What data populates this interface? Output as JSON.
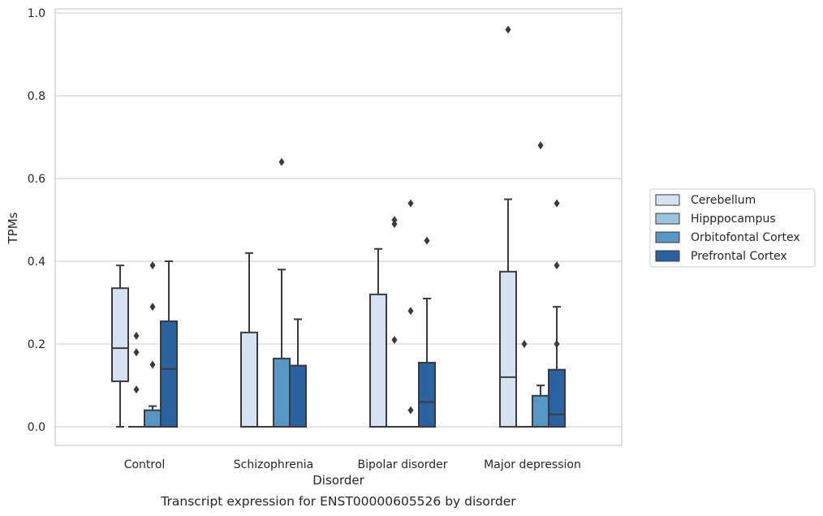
{
  "caption": "Transcript expression for ENST00000605526 by disorder",
  "chart_data": {
    "type": "box",
    "xlabel": "Disorder",
    "ylabel": "TPMs",
    "ylim": [
      -0.045,
      1.01
    ],
    "yticks": [
      "0.0",
      "0.2",
      "0.4",
      "0.6",
      "0.8",
      "1.0"
    ],
    "grid": "horizontal",
    "legend_position": "right",
    "categories": [
      "Control",
      "Schizophrenia",
      "Bipolar disorder",
      "Major depression"
    ],
    "series": [
      {
        "name": "Cerebellum",
        "color": "#d5e3f1",
        "boxes": [
          {
            "q1": 0.11,
            "median": 0.19,
            "q3": 0.335,
            "whisker_low": 0.0,
            "whisker_high": 0.39,
            "outliers": []
          },
          {
            "q1": 0.0,
            "median": 0.0,
            "q3": 0.228,
            "whisker_low": 0.0,
            "whisker_high": 0.42,
            "outliers": []
          },
          {
            "q1": 0.0,
            "median": 0.0,
            "q3": 0.32,
            "whisker_low": 0.0,
            "whisker_high": 0.43,
            "outliers": []
          },
          {
            "q1": 0.0,
            "median": 0.12,
            "q3": 0.375,
            "whisker_low": 0.0,
            "whisker_high": 0.55,
            "outliers": [
              0.96
            ]
          }
        ]
      },
      {
        "name": "Hipppocampus",
        "color": "#99c3df",
        "boxes": [
          {
            "q1": 0.0,
            "median": 0.0,
            "q3": 0.0,
            "whisker_low": 0.0,
            "whisker_high": 0.0,
            "outliers": [
              0.09,
              0.18,
              0.22
            ]
          },
          {
            "q1": 0.0,
            "median": 0.0,
            "q3": 0.0,
            "whisker_low": 0.0,
            "whisker_high": 0.0,
            "outliers": []
          },
          {
            "q1": 0.0,
            "median": 0.0,
            "q3": 0.0,
            "whisker_low": 0.0,
            "whisker_high": 0.0,
            "outliers": [
              0.21,
              0.49,
              0.5
            ]
          },
          {
            "q1": 0.0,
            "median": 0.0,
            "q3": 0.0,
            "whisker_low": 0.0,
            "whisker_high": 0.0,
            "outliers": [
              0.2
            ]
          }
        ]
      },
      {
        "name": "Orbitofontal Cortex",
        "color": "#5597c6",
        "boxes": [
          {
            "q1": 0.0,
            "median": 0.0,
            "q3": 0.04,
            "whisker_low": 0.0,
            "whisker_high": 0.05,
            "outliers": [
              0.15,
              0.29,
              0.39
            ]
          },
          {
            "q1": 0.0,
            "median": 0.0,
            "q3": 0.165,
            "whisker_low": 0.0,
            "whisker_high": 0.38,
            "outliers": [
              0.64
            ]
          },
          {
            "q1": 0.0,
            "median": 0.0,
            "q3": 0.0,
            "whisker_low": 0.0,
            "whisker_high": 0.0,
            "outliers": [
              0.04,
              0.28,
              0.54
            ]
          },
          {
            "q1": 0.0,
            "median": 0.0,
            "q3": 0.075,
            "whisker_low": 0.0,
            "whisker_high": 0.1,
            "outliers": [
              0.68
            ]
          }
        ]
      },
      {
        "name": "Prefrontal Cortex",
        "color": "#2a62a2",
        "boxes": [
          {
            "q1": 0.0,
            "median": 0.14,
            "q3": 0.255,
            "whisker_low": 0.0,
            "whisker_high": 0.4,
            "outliers": []
          },
          {
            "q1": 0.0,
            "median": 0.0,
            "q3": 0.148,
            "whisker_low": 0.0,
            "whisker_high": 0.26,
            "outliers": []
          },
          {
            "q1": 0.0,
            "median": 0.06,
            "q3": 0.155,
            "whisker_low": 0.0,
            "whisker_high": 0.31,
            "outliers": [
              0.45
            ]
          },
          {
            "q1": 0.0,
            "median": 0.03,
            "q3": 0.138,
            "whisker_low": 0.0,
            "whisker_high": 0.29,
            "outliers": [
              0.2,
              0.39,
              0.54
            ]
          }
        ]
      }
    ]
  }
}
